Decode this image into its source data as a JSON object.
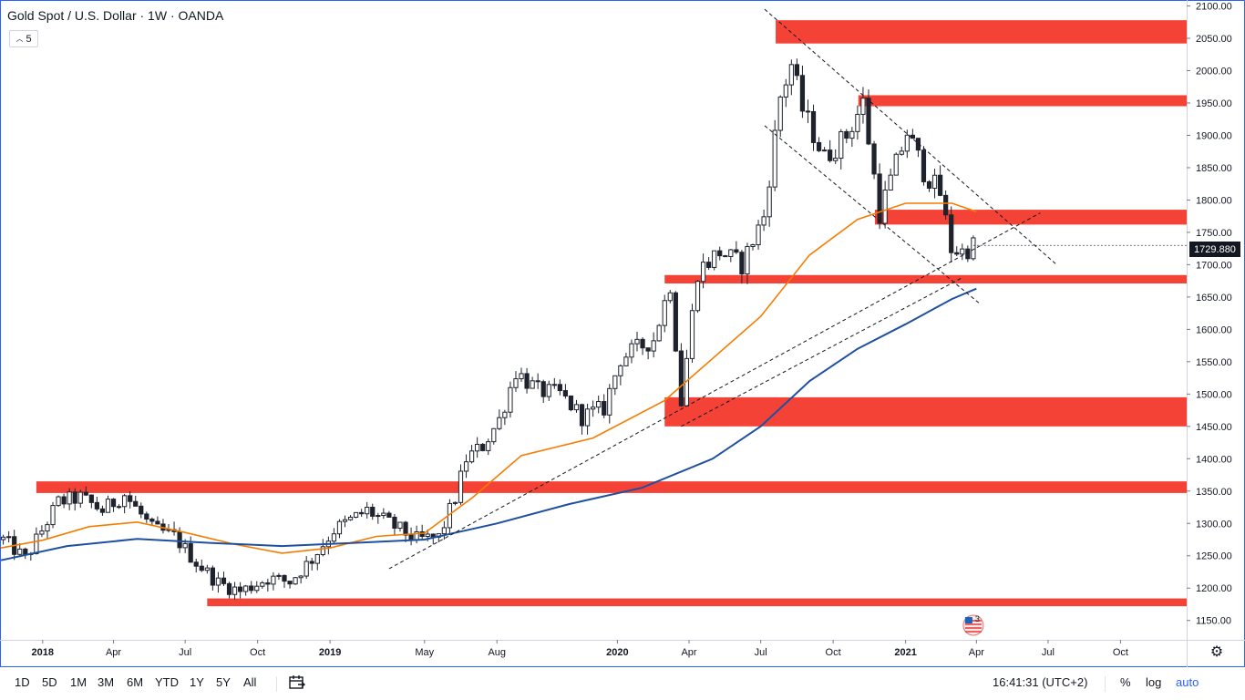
{
  "header": {
    "title": "Gold Spot / U.S. Dollar · 1W · OANDA",
    "indicator_count": "5"
  },
  "last_price": "1729.880",
  "toolbar": {
    "timeframes": [
      "1D",
      "5D",
      "1M",
      "3M",
      "6M",
      "YTD",
      "1Y",
      "5Y",
      "All"
    ],
    "clock": "16:41:31 (UTC+2)",
    "percent": "%",
    "log": "log",
    "auto": "auto"
  },
  "colors": {
    "border": "#2962ff",
    "up_candle": "#ffffff",
    "down_candle": "#1e222d",
    "zones": "#f44336",
    "ma_orange": "#f57c00",
    "ma_blue": "#1e50a2"
  },
  "chart_data": {
    "type": "candlestick",
    "symbol": "XAUUSD",
    "interval": "1W",
    "y_axis": {
      "range": [
        1120,
        2105
      ],
      "ticks": [
        1150,
        1200,
        1250,
        1300,
        1350,
        1400,
        1450,
        1500,
        1550,
        1600,
        1650,
        1700,
        1750,
        1800,
        1850,
        1900,
        1950,
        2000,
        2050,
        2100
      ]
    },
    "x_axis": {
      "range": [
        "2017-11-09",
        "2021-12-24"
      ],
      "ticks": [
        {
          "label": "2018",
          "date": "2018-01-01",
          "bold": true
        },
        {
          "label": "Apr",
          "date": "2018-04-01"
        },
        {
          "label": "Jul",
          "date": "2018-07-01"
        },
        {
          "label": "Oct",
          "date": "2018-10-01"
        },
        {
          "label": "2019",
          "date": "2019-01-01",
          "bold": true
        },
        {
          "label": "May",
          "date": "2019-05-01"
        },
        {
          "label": "Aug",
          "date": "2019-08-01"
        },
        {
          "label": "2020",
          "date": "2020-01-01",
          "bold": true
        },
        {
          "label": "Apr",
          "date": "2020-04-01"
        },
        {
          "label": "Jul",
          "date": "2020-07-01"
        },
        {
          "label": "Oct",
          "date": "2020-10-01"
        },
        {
          "label": "2021",
          "date": "2021-01-01",
          "bold": true
        },
        {
          "label": "Apr",
          "date": "2021-04-01"
        },
        {
          "label": "Jul",
          "date": "2021-07-01"
        },
        {
          "label": "Oct",
          "date": "2021-10-01"
        }
      ]
    },
    "anchors": [
      [
        "2017-11-12",
        1275
      ],
      [
        "2017-12-10",
        1245
      ],
      [
        "2018-01-21",
        1333
      ],
      [
        "2018-02-18",
        1340
      ],
      [
        "2018-03-18",
        1320
      ],
      [
        "2018-04-15",
        1345
      ],
      [
        "2018-05-20",
        1292
      ],
      [
        "2018-06-17",
        1280
      ],
      [
        "2018-07-15",
        1240
      ],
      [
        "2018-08-12",
        1208
      ],
      [
        "2018-09-09",
        1195
      ],
      [
        "2018-10-14",
        1215
      ],
      [
        "2018-11-11",
        1210
      ],
      [
        "2018-12-09",
        1245
      ],
      [
        "2019-01-06",
        1290
      ],
      [
        "2019-02-17",
        1320
      ],
      [
        "2019-03-17",
        1300
      ],
      [
        "2019-04-21",
        1275
      ],
      [
        "2019-05-19",
        1278
      ],
      [
        "2019-06-09",
        1340
      ],
      [
        "2019-06-23",
        1400
      ],
      [
        "2019-07-14",
        1420
      ],
      [
        "2019-08-04",
        1460
      ],
      [
        "2019-08-25",
        1535
      ],
      [
        "2019-09-22",
        1505
      ],
      [
        "2019-10-20",
        1500
      ],
      [
        "2019-11-17",
        1465
      ],
      [
        "2019-12-15",
        1478
      ],
      [
        "2020-01-05",
        1555
      ],
      [
        "2020-02-16",
        1585
      ],
      [
        "2020-03-08",
        1670
      ],
      [
        "2020-03-22",
        1488
      ],
      [
        "2020-04-12",
        1690
      ],
      [
        "2020-05-10",
        1720
      ],
      [
        "2020-06-07",
        1700
      ],
      [
        "2020-07-05",
        1775
      ],
      [
        "2020-07-26",
        1960
      ],
      [
        "2020-08-09",
        2010
      ],
      [
        "2020-08-23",
        1940
      ],
      [
        "2020-09-20",
        1865
      ],
      [
        "2020-10-18",
        1900
      ],
      [
        "2020-11-08",
        1950
      ],
      [
        "2020-11-29",
        1780
      ],
      [
        "2021-01-03",
        1905
      ],
      [
        "2021-01-24",
        1845
      ],
      [
        "2021-02-14",
        1810
      ],
      [
        "2021-02-28",
        1725
      ],
      [
        "2021-03-14",
        1720
      ],
      [
        "2021-03-28",
        1730
      ]
    ],
    "series": [
      {
        "points": [
          [
            "2017-11-09",
            1262
          ],
          [
            "2018-01-01",
            1274
          ],
          [
            "2018-03-01",
            1295
          ],
          [
            "2018-05-01",
            1302
          ],
          [
            "2018-07-01",
            1286
          ],
          [
            "2018-09-01",
            1268
          ],
          [
            "2018-11-01",
            1254
          ],
          [
            "2019-01-01",
            1262
          ],
          [
            "2019-03-01",
            1280
          ],
          [
            "2019-05-01",
            1285
          ],
          [
            "2019-07-01",
            1340
          ],
          [
            "2019-09-01",
            1405
          ],
          [
            "2019-12-01",
            1432
          ],
          [
            "2020-03-01",
            1490
          ],
          [
            "2020-05-01",
            1555
          ],
          [
            "2020-07-01",
            1620
          ],
          [
            "2020-09-01",
            1715
          ],
          [
            "2020-11-01",
            1770
          ],
          [
            "2021-01-01",
            1795
          ],
          [
            "2021-03-01",
            1795
          ],
          [
            "2021-04-01",
            1782
          ]
        ]
      },
      {
        "points": [
          [
            "2017-11-09",
            1243
          ],
          [
            "2018-02-01",
            1265
          ],
          [
            "2018-05-01",
            1276
          ],
          [
            "2018-08-01",
            1270
          ],
          [
            "2018-11-01",
            1265
          ],
          [
            "2019-02-01",
            1270
          ],
          [
            "2019-05-01",
            1275
          ],
          [
            "2019-08-01",
            1300
          ],
          [
            "2019-11-01",
            1330
          ],
          [
            "2020-02-01",
            1355
          ],
          [
            "2020-05-01",
            1400
          ],
          [
            "2020-07-01",
            1450
          ],
          [
            "2020-09-01",
            1520
          ],
          [
            "2020-11-01",
            1570
          ],
          [
            "2021-01-01",
            1608
          ],
          [
            "2021-03-01",
            1647
          ],
          [
            "2021-04-01",
            1663
          ]
        ]
      }
    ],
    "zones": [
      {
        "from": "2020-07-20",
        "to": "2021-12-24",
        "low": 2042,
        "high": 2078
      },
      {
        "from": "2020-11-02",
        "to": "2021-12-24",
        "low": 1945,
        "high": 1962
      },
      {
        "from": "2020-11-23",
        "to": "2021-12-24",
        "low": 1762,
        "high": 1785
      },
      {
        "from": "2020-03-01",
        "to": "2021-12-24",
        "low": 1671,
        "high": 1684
      },
      {
        "from": "2020-03-01",
        "to": "2021-12-24",
        "low": 1450,
        "high": 1495
      },
      {
        "from": "2017-12-24",
        "to": "2021-12-24",
        "low": 1347,
        "high": 1365
      },
      {
        "from": "2018-07-29",
        "to": "2021-12-24",
        "low": 1172,
        "high": 1184
      }
    ],
    "trendlines": [
      {
        "from": [
          "2020-07-06",
          2095
        ],
        "to": [
          "2021-07-12",
          1700
        ]
      },
      {
        "from": [
          "2020-07-06",
          1915
        ],
        "to": [
          "2021-04-04",
          1641
        ]
      },
      {
        "from": [
          "2019-03-17",
          1230
        ],
        "to": [
          "2021-06-21",
          1780
        ]
      },
      {
        "from": [
          "2020-03-22",
          1450
        ],
        "to": [
          "2021-03-14",
          1680
        ]
      }
    ]
  }
}
